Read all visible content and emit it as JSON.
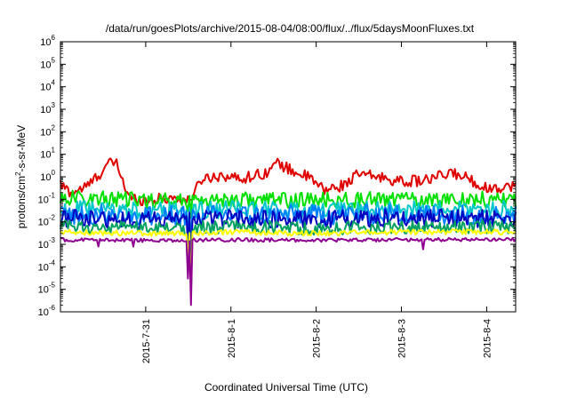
{
  "chart_data": {
    "type": "line",
    "title": "/data/run/goesPlots/archive/2015-08-04/08:00/flux/../flux/5daysMoonFluxes.txt",
    "xlabel": "Coordinated Universal Time (UTC)",
    "ylabel_parts": {
      "base": "protons/cm",
      "sup": "2",
      "rest": "-s-sr-MeV"
    },
    "yscale": "log",
    "ylim": [
      1e-06,
      1000000.0
    ],
    "ytick_labels": [
      {
        "base": "10",
        "exp": "-6"
      },
      {
        "base": "10",
        "exp": "-5"
      },
      {
        "base": "10",
        "exp": "-4"
      },
      {
        "base": "10",
        "exp": "-3"
      },
      {
        "base": "10",
        "exp": "-2"
      },
      {
        "base": "10",
        "exp": "-1"
      },
      {
        "base": "10",
        "exp": "0"
      },
      {
        "base": "10",
        "exp": "1"
      },
      {
        "base": "10",
        "exp": "2"
      },
      {
        "base": "10",
        "exp": "3"
      },
      {
        "base": "10",
        "exp": "4"
      },
      {
        "base": "10",
        "exp": "5"
      },
      {
        "base": "10",
        "exp": "6"
      }
    ],
    "xlim_days_from_jul30": [
      0,
      5.34
    ],
    "xticks": [
      {
        "label": "2015-7-31",
        "day": 1.0
      },
      {
        "label": "2015-8-1",
        "day": 2.0
      },
      {
        "label": "2015-8-2",
        "day": 3.0
      },
      {
        "label": "2015-8-3",
        "day": 4.0
      },
      {
        "label": "2015-8-4",
        "day": 5.0
      }
    ],
    "grid": false,
    "legend": "none",
    "series": [
      {
        "color": "#e00000",
        "noise": 0.25,
        "baseline": [
          [
            0.0,
            0.45
          ],
          [
            0.12,
            0.2
          ],
          [
            0.3,
            0.35
          ],
          [
            0.45,
            1.2
          ],
          [
            0.55,
            3.5
          ],
          [
            0.65,
            4.5
          ],
          [
            0.7,
            1.5
          ],
          [
            0.8,
            0.12
          ],
          [
            1.0,
            0.09
          ],
          [
            1.35,
            0.12
          ],
          [
            1.5,
            0.08
          ],
          [
            1.6,
            0.3
          ],
          [
            1.65,
            0.8
          ],
          [
            1.9,
            1.2
          ],
          [
            2.1,
            0.8
          ],
          [
            2.4,
            1.5
          ],
          [
            2.55,
            4.0
          ],
          [
            2.7,
            2.0
          ],
          [
            2.9,
            1.0
          ],
          [
            3.1,
            0.25
          ],
          [
            3.3,
            0.4
          ],
          [
            3.5,
            1.3
          ],
          [
            3.8,
            0.9
          ],
          [
            4.0,
            0.6
          ],
          [
            4.3,
            0.7
          ],
          [
            4.6,
            1.5
          ],
          [
            4.8,
            0.8
          ],
          [
            5.0,
            0.3
          ],
          [
            5.34,
            0.4
          ]
        ],
        "dips": [
          [
            0.15,
            0.2
          ],
          [
            0.85,
            0.15
          ],
          [
            3.15,
            0.3
          ]
        ]
      },
      {
        "color": "#00e000",
        "noise": 0.35,
        "baseline": [
          [
            0.0,
            0.12
          ],
          [
            1.0,
            0.09
          ],
          [
            2.0,
            0.1
          ],
          [
            3.0,
            0.09
          ],
          [
            4.0,
            0.1
          ],
          [
            5.34,
            0.1
          ]
        ],
        "dips": [
          [
            1.5,
            0.03
          ],
          [
            1.53,
            0.015
          ]
        ]
      },
      {
        "color": "#00c8c8",
        "noise": 0.4,
        "baseline": [
          [
            0.0,
            0.035
          ],
          [
            1.0,
            0.03
          ],
          [
            2.0,
            0.035
          ],
          [
            3.0,
            0.03
          ],
          [
            4.0,
            0.035
          ],
          [
            5.34,
            0.035
          ]
        ],
        "dips": [
          [
            1.5,
            0.003
          ],
          [
            1.53,
            0.0008
          ]
        ]
      },
      {
        "color": "#0080ff",
        "noise": 0.45,
        "baseline": [
          [
            0.0,
            0.022
          ],
          [
            1.0,
            0.018
          ],
          [
            2.0,
            0.02
          ],
          [
            3.0,
            0.02
          ],
          [
            4.0,
            0.022
          ],
          [
            5.34,
            0.02
          ]
        ],
        "dips": [
          [
            1.5,
            0.002
          ],
          [
            1.53,
            0.0003
          ]
        ]
      },
      {
        "color": "#0000c0",
        "noise": 0.4,
        "baseline": [
          [
            0.0,
            0.015
          ],
          [
            1.0,
            0.012
          ],
          [
            2.0,
            0.014
          ],
          [
            3.0,
            0.013
          ],
          [
            4.0,
            0.015
          ],
          [
            5.34,
            0.014
          ]
        ],
        "dips": [
          [
            1.5,
            0.0008
          ],
          [
            1.53,
            8e-05
          ]
        ]
      },
      {
        "color": "#00a060",
        "noise": 0.3,
        "baseline": [
          [
            0.0,
            0.006
          ],
          [
            1.0,
            0.005
          ],
          [
            2.0,
            0.006
          ],
          [
            3.0,
            0.005
          ],
          [
            4.0,
            0.006
          ],
          [
            5.34,
            0.006
          ]
        ],
        "dips": [
          [
            1.5,
            0.0003
          ],
          [
            1.53,
            2e-05
          ]
        ]
      },
      {
        "color": "#ffff00",
        "noise": 0.12,
        "baseline": [
          [
            0.0,
            0.0035
          ],
          [
            1.0,
            0.003
          ],
          [
            2.0,
            0.0035
          ],
          [
            3.0,
            0.003
          ],
          [
            4.0,
            0.0035
          ],
          [
            5.34,
            0.0035
          ]
        ],
        "dips": [
          [
            1.5,
            0.0002
          ],
          [
            1.53,
            6e-06
          ]
        ]
      },
      {
        "color": "#900090",
        "noise": 0.08,
        "baseline": [
          [
            0.0,
            0.0016
          ],
          [
            1.0,
            0.0015
          ],
          [
            2.0,
            0.0016
          ],
          [
            3.0,
            0.0015
          ],
          [
            4.0,
            0.0016
          ],
          [
            5.34,
            0.0016
          ]
        ],
        "dips": [
          [
            0.45,
            0.0008
          ],
          [
            0.85,
            0.0008
          ],
          [
            1.5,
            3e-05
          ],
          [
            1.53,
            2e-06
          ],
          [
            4.25,
            0.0006
          ]
        ]
      }
    ]
  }
}
